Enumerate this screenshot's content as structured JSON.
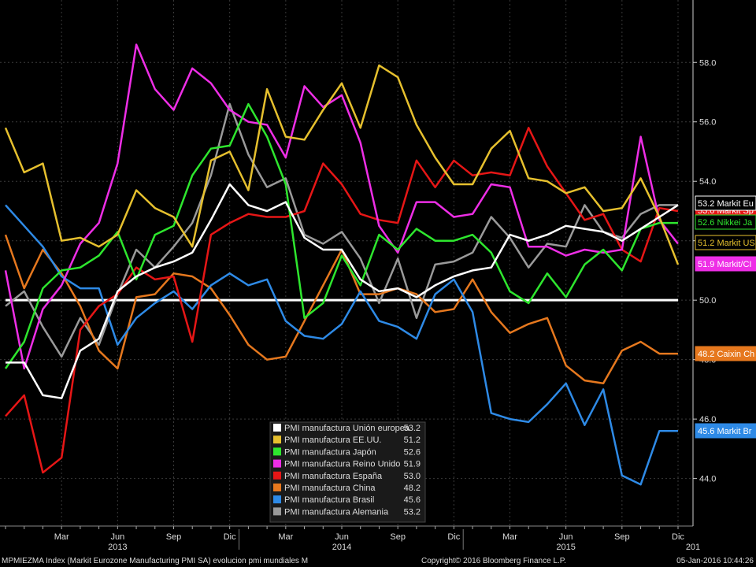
{
  "chart_data": {
    "type": "line",
    "x": [
      "2012-12",
      "2013-01",
      "2013-02",
      "2013-03",
      "2013-04",
      "2013-05",
      "2013-06",
      "2013-07",
      "2013-08",
      "2013-09",
      "2013-10",
      "2013-11",
      "2013-12",
      "2014-01",
      "2014-02",
      "2014-03",
      "2014-04",
      "2014-05",
      "2014-06",
      "2014-07",
      "2014-08",
      "2014-09",
      "2014-10",
      "2014-11",
      "2014-12",
      "2015-01",
      "2015-02",
      "2015-03",
      "2015-04",
      "2015-05",
      "2015-06",
      "2015-07",
      "2015-08",
      "2015-09",
      "2015-10",
      "2015-11",
      "2015-12"
    ],
    "x_tick_labels": [
      {
        "x": "2013-03",
        "label": "Mar"
      },
      {
        "x": "2013-06",
        "label": "Jun"
      },
      {
        "x": "2013-09",
        "label": "Sep"
      },
      {
        "x": "2013-12",
        "label": "Dic"
      },
      {
        "x": "2014-03",
        "label": "Mar"
      },
      {
        "x": "2014-06",
        "label": "Jun"
      },
      {
        "x": "2014-09",
        "label": "Sep"
      },
      {
        "x": "2014-12",
        "label": "Dic"
      },
      {
        "x": "2015-03",
        "label": "Mar"
      },
      {
        "x": "2015-06",
        "label": "Jun"
      },
      {
        "x": "2015-09",
        "label": "Sep"
      },
      {
        "x": "2015-12",
        "label": "Dic"
      }
    ],
    "year_labels": [
      {
        "x": "2013-06",
        "label": "2013"
      },
      {
        "x": "2014-06",
        "label": "2014"
      },
      {
        "x": "2015-06",
        "label": "2015"
      },
      {
        "x": "2016-01",
        "label": "201"
      }
    ],
    "y_ticks": [
      44.0,
      46.0,
      48.0,
      50.0,
      52.0,
      54.0,
      56.0,
      58.0
    ],
    "y_tick_labels": [
      "44.0",
      "46.0",
      "48.0",
      "50.0",
      "52.0",
      "54.0",
      "56.0",
      "58.0"
    ],
    "ylim": [
      42.4,
      60.1
    ],
    "reference_line": 50.0,
    "series": [
      {
        "name": "PMI manufactura Unión europea",
        "color": "#ffffff",
        "last": "53.2",
        "tag": "53.2 Markit Eu",
        "values": [
          47.9,
          47.9,
          46.8,
          46.7,
          48.3,
          48.7,
          50.3,
          50.8,
          51.1,
          51.3,
          51.6,
          52.7,
          53.9,
          53.2,
          53.0,
          53.3,
          52.1,
          51.7,
          51.7,
          50.7,
          50.3,
          50.4,
          50.1,
          50.5,
          50.8,
          51.0,
          51.1,
          52.2,
          52.0,
          52.2,
          52.5,
          52.4,
          52.3,
          52.0,
          52.4,
          52.8,
          53.2
        ]
      },
      {
        "name": "PMI manufactura EE.UU.",
        "color": "#e6c02e",
        "last": "51.2",
        "tag": "51.2 Markit US",
        "values": [
          55.8,
          54.3,
          54.6,
          52.0,
          52.1,
          51.8,
          52.2,
          53.7,
          53.1,
          52.8,
          51.8,
          54.7,
          55.0,
          53.7,
          57.1,
          55.5,
          55.4,
          56.4,
          57.3,
          55.8,
          57.9,
          57.5,
          55.9,
          54.8,
          53.9,
          53.9,
          55.1,
          55.7,
          54.1,
          54.0,
          53.6,
          53.8,
          53.0,
          53.1,
          54.1,
          52.8,
          51.2
        ]
      },
      {
        "name": "PMI manufactura Japón",
        "color": "#2ee62e",
        "last": "52.6",
        "tag": "52.6 Nikkei Ja",
        "values": [
          47.7,
          48.6,
          50.4,
          51.0,
          51.1,
          51.5,
          52.3,
          50.7,
          52.2,
          52.5,
          54.2,
          55.1,
          55.2,
          56.6,
          55.5,
          53.9,
          49.4,
          49.9,
          51.5,
          50.5,
          52.2,
          51.7,
          52.4,
          52.0,
          52.0,
          52.2,
          51.6,
          50.3,
          49.9,
          50.9,
          50.1,
          51.2,
          51.7,
          51.0,
          52.4,
          52.6,
          52.6
        ]
      },
      {
        "name": "PMI manufactura Reino Unido",
        "color": "#ee2ee6",
        "last": "51.9",
        "tag": "51.9 Markit/CI",
        "values": [
          51.0,
          47.7,
          49.7,
          50.5,
          51.9,
          52.6,
          54.6,
          58.6,
          57.1,
          56.4,
          57.8,
          57.3,
          56.4,
          56.0,
          55.9,
          54.8,
          57.2,
          56.5,
          56.9,
          55.3,
          52.5,
          51.6,
          53.3,
          53.3,
          52.8,
          52.9,
          53.9,
          53.8,
          51.8,
          51.8,
          51.5,
          51.7,
          51.6,
          51.7,
          55.5,
          52.7,
          51.9
        ]
      },
      {
        "name": "PMI manufactura España",
        "color": "#e61616",
        "last": "53.0",
        "tag": "53.0 Markit Sp",
        "values": [
          46.1,
          46.8,
          44.2,
          44.7,
          49.0,
          49.8,
          50.2,
          51.1,
          50.7,
          50.8,
          48.6,
          52.2,
          52.6,
          52.9,
          52.8,
          52.8,
          53.0,
          54.6,
          53.9,
          52.9,
          52.7,
          52.6,
          54.7,
          53.8,
          54.7,
          54.2,
          54.3,
          54.2,
          55.8,
          54.5,
          53.6,
          52.7,
          52.9,
          51.7,
          51.3,
          53.1,
          53.0
        ]
      },
      {
        "name": "PMI manufactura China",
        "color": "#e6781e",
        "last": "48.2",
        "tag": "48.2 Caixin Ch",
        "values": [
          52.2,
          50.4,
          51.7,
          50.9,
          49.8,
          48.3,
          47.7,
          50.1,
          50.2,
          50.9,
          50.8,
          50.4,
          49.5,
          48.5,
          48.0,
          48.1,
          49.3,
          50.5,
          51.7,
          50.2,
          50.2,
          50.4,
          50.2,
          49.6,
          49.7,
          50.7,
          49.6,
          48.9,
          49.2,
          49.4,
          47.8,
          47.3,
          47.2,
          48.3,
          48.6,
          48.2,
          48.2
        ]
      },
      {
        "name": "PMI manufactura Brasil",
        "color": "#2e8ae6",
        "last": "45.6",
        "tag": "45.6 Markit Br",
        "values": [
          53.2,
          52.5,
          51.8,
          50.8,
          50.4,
          50.4,
          48.5,
          49.4,
          49.9,
          50.3,
          49.7,
          50.5,
          50.9,
          50.5,
          50.7,
          49.3,
          48.8,
          48.7,
          49.2,
          50.3,
          49.3,
          49.1,
          48.7,
          50.2,
          50.7,
          49.6,
          46.2,
          46.0,
          45.9,
          46.5,
          47.2,
          45.8,
          47.0,
          44.1,
          43.8,
          45.6,
          45.6
        ]
      },
      {
        "name": "PMI manufactura Alemania",
        "color": "#9a9a9a",
        "last": "53.2",
        "tag": "53.2",
        "values": [
          49.8,
          50.3,
          49.1,
          48.1,
          49.4,
          48.5,
          50.2,
          51.7,
          51.1,
          51.8,
          52.6,
          54.2,
          56.6,
          54.9,
          53.8,
          54.1,
          52.2,
          51.9,
          52.3,
          51.4,
          49.9,
          51.4,
          49.4,
          51.2,
          51.3,
          51.6,
          52.8,
          52.1,
          51.1,
          51.9,
          51.8,
          53.2,
          52.3,
          52.1,
          52.9,
          53.2,
          53.2
        ]
      }
    ]
  },
  "footer": {
    "left": "MPMIEZMA Index (Markit Eurozone Manufacturing PMI SA) evolucion pmi mundiales  M",
    "center": "Copyright© 2016 Bloomberg Finance L.P.",
    "right": "05-Jan-2016 10:44:26"
  }
}
